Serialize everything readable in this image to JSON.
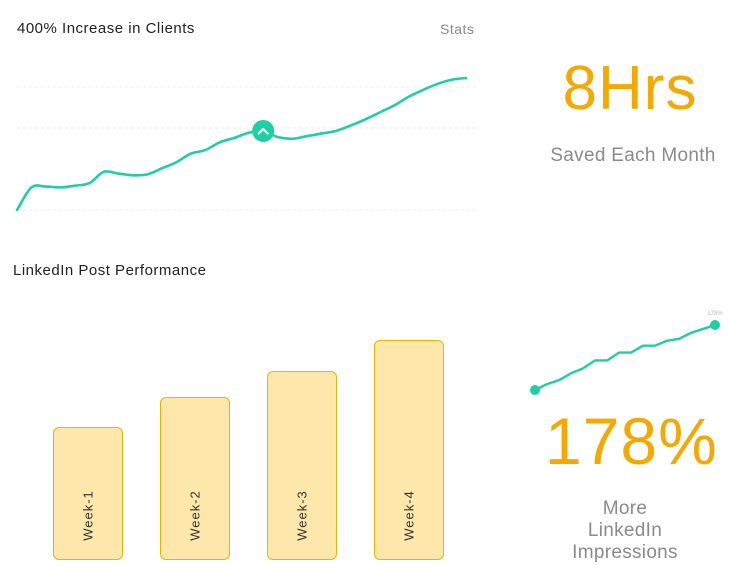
{
  "top_chart": {
    "title": "400% Increase in Clients",
    "stats_label": "Stats"
  },
  "metric_hours": {
    "value": "8Hrs",
    "label": "Saved Each Month"
  },
  "bar_chart_title": "LinkedIn Post Performance",
  "metric_impressions": {
    "value": "178%",
    "label_lines": [
      "More",
      "LinkedIn",
      "Impressions"
    ],
    "sparkline_end_label": "178%"
  },
  "colors": {
    "line": "#1ecfa5",
    "bar_fill": "#fde7aa",
    "bar_stroke": "#f4b000",
    "accent": "#f4a800",
    "grid": "#ececec"
  },
  "chart_data": [
    {
      "type": "line",
      "title": "400% Increase in Clients",
      "x": [
        0,
        1,
        2,
        3,
        4,
        5,
        6,
        7,
        8,
        9,
        10,
        11,
        12,
        13,
        14,
        15,
        16,
        17,
        18,
        19,
        20,
        21,
        22,
        23,
        24,
        25,
        26,
        27,
        28,
        29,
        30,
        31
      ],
      "values": [
        0,
        26,
        27,
        26,
        28,
        31,
        44,
        42,
        40,
        41,
        48,
        55,
        65,
        69,
        78,
        83,
        89,
        91,
        84,
        82,
        85,
        88,
        91,
        97,
        104,
        112,
        120,
        130,
        138,
        145,
        150,
        152
      ],
      "highlight_index": 17,
      "ylim": [
        0,
        152
      ],
      "grid": true
    },
    {
      "type": "bar",
      "title": "LinkedIn Post Performance",
      "categories": [
        "Week-1",
        "Week-2",
        "Week-3",
        "Week-4"
      ],
      "values": [
        133,
        163,
        189,
        220
      ],
      "ylim": [
        0,
        220
      ]
    },
    {
      "type": "line",
      "x": [
        0,
        1,
        2,
        3,
        4,
        5,
        6,
        7,
        8,
        9,
        10,
        11,
        12,
        13,
        14,
        15
      ],
      "values": [
        0,
        6,
        10,
        17,
        22,
        30,
        30,
        38,
        38,
        45,
        45,
        50,
        52,
        58,
        62,
        66
      ],
      "end_label": "178%",
      "ylim": [
        0,
        66
      ]
    }
  ]
}
